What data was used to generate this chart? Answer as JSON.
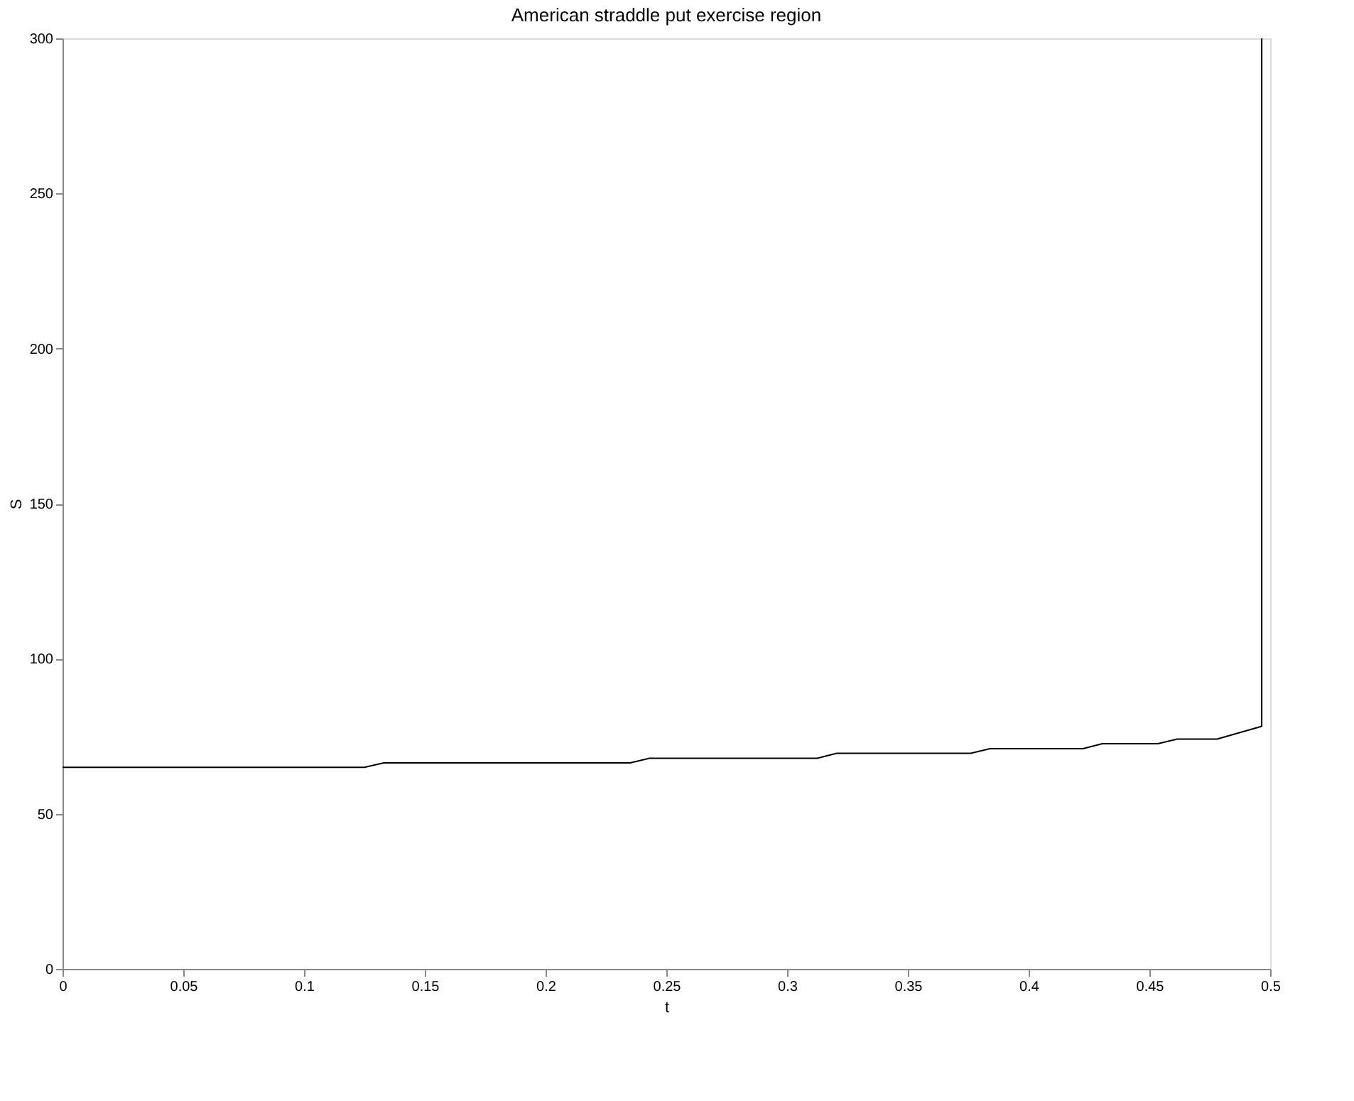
{
  "chart_data": {
    "type": "line",
    "title": "American straddle put exercise region",
    "xlabel": "t",
    "ylabel": "S",
    "x": [
      0,
      0.125,
      0.133,
      0.235,
      0.243,
      0.3125,
      0.3205,
      0.376,
      0.384,
      0.4225,
      0.4305,
      0.4535,
      0.4615,
      0.478,
      0.4965,
      0.4965
    ],
    "series": [
      {
        "color": "#000000",
        "values": [
          65,
          65,
          66.4,
          66.4,
          67.9,
          67.9,
          69.5,
          69.5,
          71,
          71,
          72.6,
          72.6,
          74.1,
          74.1,
          78.2,
          300
        ]
      }
    ],
    "xlim": [
      0,
      0.5
    ],
    "xticks": [
      0,
      0.05,
      0.1,
      0.15,
      0.2,
      0.25,
      0.3,
      0.35,
      0.4,
      0.45,
      0.5
    ],
    "ylim": [
      0,
      300
    ],
    "yticks": [
      0,
      50,
      100,
      150,
      200,
      250,
      300
    ],
    "grid": false,
    "marker": "none",
    "line_style": "solid"
  }
}
